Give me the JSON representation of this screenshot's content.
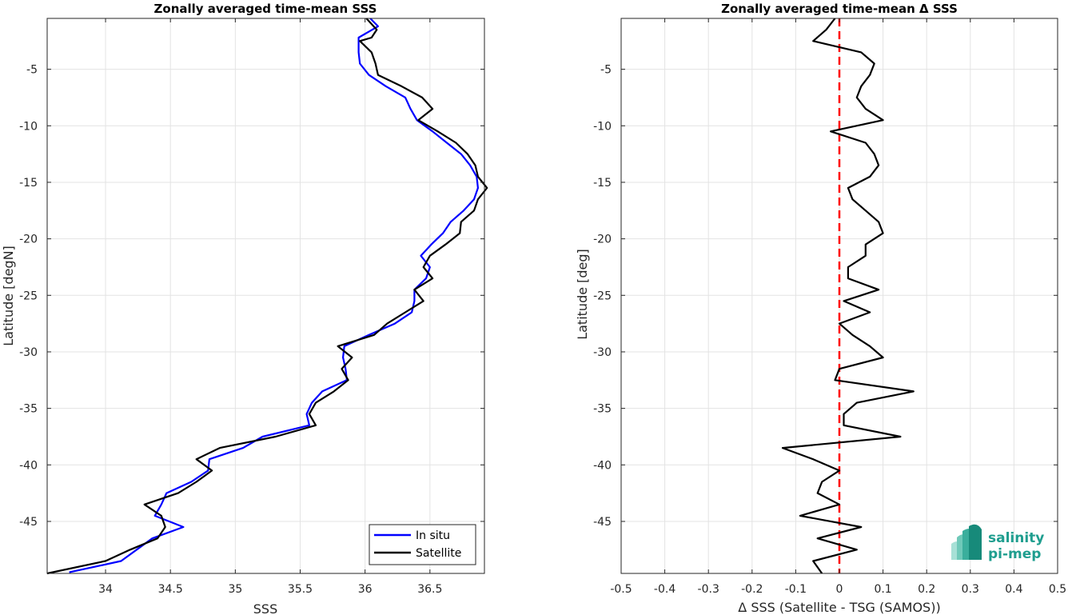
{
  "chart_data": [
    {
      "type": "line",
      "title": "Zonally averaged time-mean SSS",
      "xlabel": "SSS",
      "ylabel": "Latitude [degN]",
      "xlim": [
        33.55,
        36.92
      ],
      "ylim": [
        -49.6,
        -0.5
      ],
      "xticks": [
        "34",
        "34.5",
        "35",
        "35.5",
        "36",
        "36.5"
      ],
      "yticks": [
        "-5",
        "-10",
        "-15",
        "-20",
        "-25",
        "-30",
        "-35",
        "-40",
        "-45"
      ],
      "grid": true,
      "legend_position": "bottom-right",
      "series": [
        {
          "name": "In situ",
          "color": "#0000ff",
          "points": [
            [
              36.04,
              -0.5
            ],
            [
              36.1,
              -1.2
            ],
            [
              35.95,
              -2.2
            ],
            [
              35.95,
              -3.5
            ],
            [
              35.96,
              -4.5
            ],
            [
              36.03,
              -5.5
            ],
            [
              36.16,
              -6.5
            ],
            [
              36.31,
              -7.5
            ],
            [
              36.35,
              -8.5
            ],
            [
              36.4,
              -9.5
            ],
            [
              36.52,
              -10.5
            ],
            [
              36.63,
              -11.5
            ],
            [
              36.74,
              -12.5
            ],
            [
              36.81,
              -13.5
            ],
            [
              36.86,
              -14.5
            ],
            [
              36.87,
              -15.5
            ],
            [
              36.84,
              -16.5
            ],
            [
              36.76,
              -17.5
            ],
            [
              36.66,
              -18.5
            ],
            [
              36.6,
              -19.5
            ],
            [
              36.51,
              -20.5
            ],
            [
              36.43,
              -21.5
            ],
            [
              36.5,
              -22.5
            ],
            [
              36.47,
              -23.5
            ],
            [
              36.38,
              -24.5
            ],
            [
              36.38,
              -25.5
            ],
            [
              36.36,
              -26.5
            ],
            [
              36.23,
              -27.5
            ],
            [
              36.03,
              -28.5
            ],
            [
              35.84,
              -29.5
            ],
            [
              35.83,
              -30.5
            ],
            [
              35.85,
              -31.5
            ],
            [
              35.86,
              -32.5
            ],
            [
              35.67,
              -33.5
            ],
            [
              35.59,
              -34.5
            ],
            [
              35.55,
              -35.5
            ],
            [
              35.57,
              -36.5
            ],
            [
              35.21,
              -37.5
            ],
            [
              35.06,
              -38.5
            ],
            [
              34.8,
              -39.5
            ],
            [
              34.79,
              -40.5
            ],
            [
              34.66,
              -41.5
            ],
            [
              34.47,
              -42.5
            ],
            [
              34.43,
              -43.5
            ],
            [
              34.38,
              -44.5
            ],
            [
              34.6,
              -45.5
            ],
            [
              34.36,
              -46.5
            ],
            [
              34.24,
              -47.5
            ],
            [
              34.12,
              -48.5
            ],
            [
              33.72,
              -49.5
            ]
          ]
        },
        {
          "name": "Satellite",
          "color": "#000000",
          "points": [
            [
              36.01,
              -0.5
            ],
            [
              36.09,
              -1.5
            ],
            [
              36.05,
              -2.2
            ],
            [
              35.96,
              -2.5
            ],
            [
              36.05,
              -3.5
            ],
            [
              36.08,
              -4.5
            ],
            [
              36.1,
              -5.5
            ],
            [
              36.28,
              -6.5
            ],
            [
              36.44,
              -7.5
            ],
            [
              36.52,
              -8.5
            ],
            [
              36.41,
              -9.5
            ],
            [
              36.56,
              -10.5
            ],
            [
              36.7,
              -11.5
            ],
            [
              36.79,
              -12.5
            ],
            [
              36.85,
              -13.5
            ],
            [
              36.87,
              -14.5
            ],
            [
              36.94,
              -15.5
            ],
            [
              36.87,
              -16.5
            ],
            [
              36.84,
              -17.5
            ],
            [
              36.74,
              -18.5
            ],
            [
              36.73,
              -19.5
            ],
            [
              36.62,
              -20.5
            ],
            [
              36.5,
              -21.5
            ],
            [
              36.45,
              -22.5
            ],
            [
              36.52,
              -23.5
            ],
            [
              36.38,
              -24.5
            ],
            [
              36.45,
              -25.5
            ],
            [
              36.31,
              -26.5
            ],
            [
              36.17,
              -27.5
            ],
            [
              36.07,
              -28.5
            ],
            [
              35.79,
              -29.5
            ],
            [
              35.9,
              -30.5
            ],
            [
              35.82,
              -31.5
            ],
            [
              35.87,
              -32.5
            ],
            [
              35.76,
              -33.5
            ],
            [
              35.62,
              -34.5
            ],
            [
              35.57,
              -35.5
            ],
            [
              35.62,
              -36.5
            ],
            [
              35.31,
              -37.5
            ],
            [
              34.88,
              -38.5
            ],
            [
              34.7,
              -39.5
            ],
            [
              34.82,
              -40.5
            ],
            [
              34.7,
              -41.5
            ],
            [
              34.56,
              -42.5
            ],
            [
              34.3,
              -43.5
            ],
            [
              34.43,
              -44.5
            ],
            [
              34.46,
              -45.5
            ],
            [
              34.4,
              -46.5
            ],
            [
              34.19,
              -47.5
            ],
            [
              34.0,
              -48.5
            ],
            [
              33.55,
              -49.6
            ]
          ]
        }
      ]
    },
    {
      "type": "line",
      "title": "Zonally averaged time-mean Δ SSS",
      "xlabel": "Δ SSS (Satellite - TSG (SAMOS))",
      "ylabel": "Latitude [deg]",
      "xlim": [
        -0.5,
        0.5
      ],
      "ylim": [
        -49.6,
        -0.5
      ],
      "xticks": [
        "-0.5",
        "-0.4",
        "-0.3",
        "-0.2",
        "-0.1",
        "0",
        "0.1",
        "0.2",
        "0.3",
        "0.4",
        "0.5"
      ],
      "yticks": [
        "-5",
        "-10",
        "-15",
        "-20",
        "-25",
        "-30",
        "-35",
        "-40",
        "-45"
      ],
      "grid": true,
      "reference_line": {
        "x": 0,
        "color": "#ff0000",
        "style": "dashed"
      },
      "series": [
        {
          "color": "#000000",
          "points": [
            [
              -0.01,
              -0.5
            ],
            [
              -0.03,
              -1.5
            ],
            [
              -0.06,
              -2.5
            ],
            [
              0.05,
              -3.5
            ],
            [
              0.08,
              -4.5
            ],
            [
              0.07,
              -5.5
            ],
            [
              0.05,
              -6.5
            ],
            [
              0.04,
              -7.5
            ],
            [
              0.06,
              -8.5
            ],
            [
              0.1,
              -9.5
            ],
            [
              -0.02,
              -10.5
            ],
            [
              0.06,
              -11.5
            ],
            [
              0.08,
              -12.5
            ],
            [
              0.09,
              -13.5
            ],
            [
              0.07,
              -14.5
            ],
            [
              0.02,
              -15.5
            ],
            [
              0.03,
              -16.5
            ],
            [
              0.06,
              -17.5
            ],
            [
              0.09,
              -18.5
            ],
            [
              0.1,
              -19.5
            ],
            [
              0.06,
              -20.5
            ],
            [
              0.06,
              -21.5
            ],
            [
              0.02,
              -22.5
            ],
            [
              0.02,
              -23.5
            ],
            [
              0.09,
              -24.5
            ],
            [
              0.01,
              -25.5
            ],
            [
              0.07,
              -26.5
            ],
            [
              0.0,
              -27.5
            ],
            [
              0.03,
              -28.5
            ],
            [
              0.07,
              -29.5
            ],
            [
              0.1,
              -30.5
            ],
            [
              0.0,
              -31.5
            ],
            [
              -0.01,
              -32.5
            ],
            [
              0.17,
              -33.5
            ],
            [
              0.04,
              -34.5
            ],
            [
              0.01,
              -35.5
            ],
            [
              0.01,
              -36.5
            ],
            [
              0.14,
              -37.5
            ],
            [
              -0.13,
              -38.5
            ],
            [
              -0.06,
              -39.5
            ],
            [
              0.0,
              -40.5
            ],
            [
              -0.04,
              -41.5
            ],
            [
              -0.05,
              -42.5
            ],
            [
              0.0,
              -43.5
            ],
            [
              -0.09,
              -44.5
            ],
            [
              0.05,
              -45.5
            ],
            [
              -0.05,
              -46.5
            ],
            [
              0.04,
              -47.5
            ],
            [
              -0.06,
              -48.5
            ],
            [
              -0.04,
              -49.6
            ]
          ]
        }
      ]
    }
  ],
  "legend": {
    "items": [
      "In situ",
      "Satellite"
    ]
  },
  "logo": {
    "line1": "salinity",
    "line2": "pi-mep"
  }
}
